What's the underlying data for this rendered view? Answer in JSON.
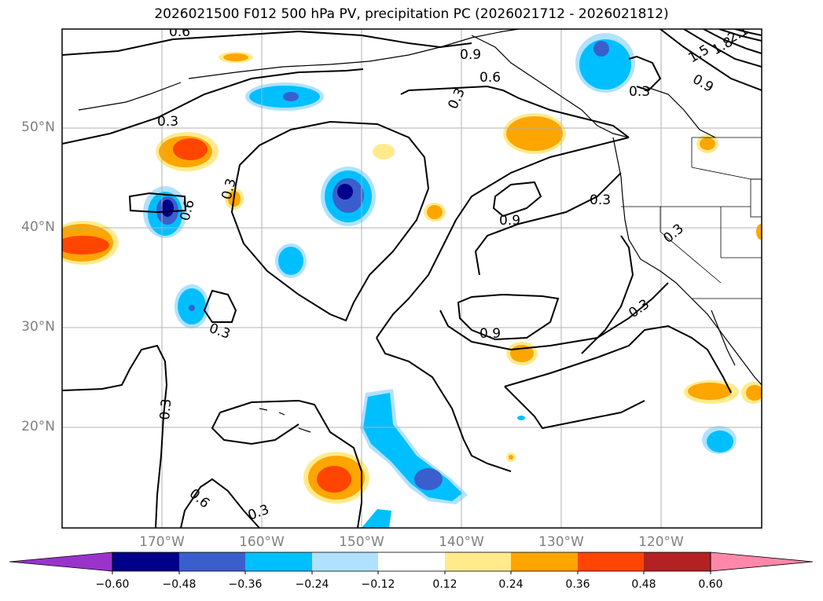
{
  "title": "2026021500 F012 500 hPa PV, precipitation PC (2026021712 - 2026021812)",
  "map": {
    "lat_labels": [
      "50°N",
      "40°N",
      "30°N",
      "20°N"
    ],
    "lon_labels": [
      "170°W",
      "160°W",
      "150°W",
      "140°W",
      "130°W",
      "120°W"
    ],
    "contour_labels": [
      "0.6",
      "0.9",
      "0.6",
      "0.3",
      "0.3",
      "0.3",
      "0.6",
      "0.3",
      "0.9",
      "0.3",
      "0.3",
      "0.3",
      "0.9",
      "0.3",
      "0.3",
      "0.6",
      "0.3",
      "0.9",
      "1.5",
      "1.8",
      "2.1"
    ]
  },
  "colorbar": {
    "colors": [
      "#9933cc",
      "#00008b",
      "#3a5fcd",
      "#00bfff",
      "#b0e2ff",
      "#ffffff",
      "#ffeb8c",
      "#ffa500",
      "#ff4500",
      "#b22222",
      "#ff88aa"
    ],
    "ticks": [
      "−0.60",
      "−0.48",
      "−0.36",
      "−0.24",
      "−0.12",
      "0.12",
      "0.24",
      "0.36",
      "0.48",
      "0.60"
    ]
  }
}
